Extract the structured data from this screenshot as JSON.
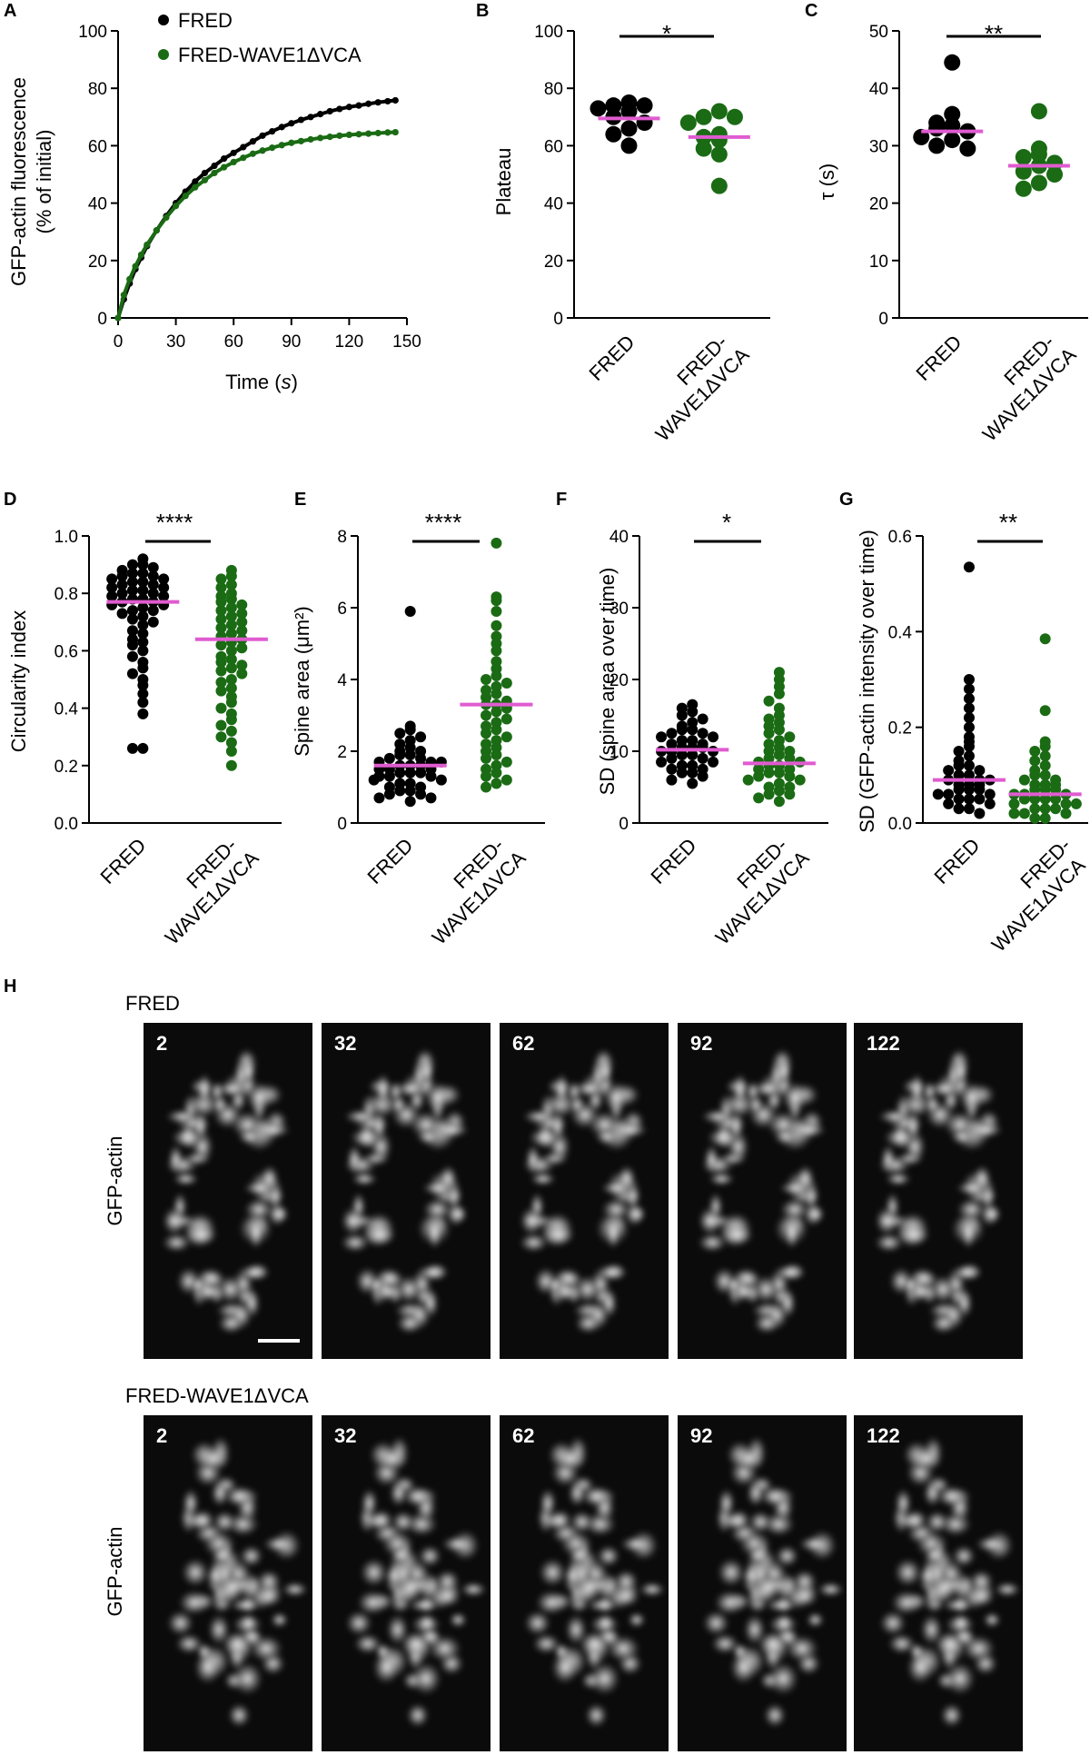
{
  "colors": {
    "fred": "#000000",
    "wave": "#1a6b14",
    "median": "#e05bd0",
    "bg": "#ffffff"
  },
  "panels": {
    "A": {
      "letter": "A",
      "ylabel1": "GFP-actin fluorescence",
      "ylabel2": "(% of initial)",
      "xlabel": "Time (",
      "xlabel_italic": "s",
      "xlabel_end": ")",
      "legend": [
        "FRED",
        "FRED-WAVE1ΔVCA"
      ]
    },
    "B": {
      "letter": "B",
      "ylabel": "Plateau",
      "sig": "*",
      "cats": [
        "FRED",
        "FRED-",
        "WAVE1ΔVCA"
      ]
    },
    "C": {
      "letter": "C",
      "ylabel": "τ (s)",
      "sig": "**",
      "cats": [
        "FRED",
        "FRED-",
        "WAVE1ΔVCA"
      ]
    },
    "D": {
      "letter": "D",
      "ylabel": "Circularity index",
      "sig": "****",
      "cats": [
        "FRED",
        "FRED-",
        "WAVE1ΔVCA"
      ]
    },
    "E": {
      "letter": "E",
      "ylabel": "Spine area (μm²)",
      "sig": "****",
      "cats": [
        "FRED",
        "FRED-",
        "WAVE1ΔVCA"
      ]
    },
    "F": {
      "letter": "F",
      "ylabel": "SD (spine area over time)",
      "sig": "*",
      "cats": [
        "FRED",
        "FRED-",
        "WAVE1ΔVCA"
      ]
    },
    "G": {
      "letter": "G",
      "ylabel": "SD (GFP-actin intensity over time)",
      "sig": "**",
      "cats": [
        "FRED",
        "FRED-",
        "WAVE1ΔVCA"
      ]
    },
    "H": {
      "letter": "H",
      "rows": [
        {
          "title": "FRED",
          "ylabel": "GFP-actin",
          "frames": [
            "2",
            "32",
            "62",
            "92",
            "122"
          ]
        },
        {
          "title": "FRED-WAVE1ΔVCA",
          "ylabel": "GFP-actin",
          "frames": [
            "2",
            "32",
            "62",
            "92",
            "122"
          ]
        }
      ]
    }
  },
  "chart_data": [
    {
      "panel": "A",
      "type": "line",
      "xlabel": "Time (s)",
      "ylabel": "GFP-actin fluorescence (% of initial)",
      "xlim": [
        0,
        150
      ],
      "ylim": [
        0,
        100
      ],
      "xticks": [
        0,
        30,
        60,
        90,
        120,
        150
      ],
      "yticks": [
        0,
        20,
        40,
        60,
        80,
        100
      ],
      "x": [
        0,
        3,
        6,
        9,
        12,
        15,
        20,
        25,
        30,
        35,
        40,
        45,
        50,
        55,
        60,
        65,
        70,
        75,
        80,
        85,
        90,
        95,
        100,
        105,
        110,
        115,
        120,
        125,
        130,
        135,
        140,
        144
      ],
      "series": [
        {
          "name": "FRED",
          "values": [
            0,
            6.5,
            12,
            17,
            21,
            25,
            30.5,
            35.5,
            40,
            44,
            47.5,
            50.5,
            53,
            55.5,
            57.5,
            59.5,
            61.5,
            63.5,
            65,
            66.5,
            67.8,
            69,
            70,
            71,
            72,
            72.8,
            73.5,
            74,
            74.6,
            75.1,
            75.5,
            75.8
          ]
        },
        {
          "name": "FRED-WAVE1ΔVCA",
          "values": [
            0,
            8,
            13.5,
            18,
            22,
            25.5,
            30.5,
            35,
            39,
            42.5,
            45.5,
            48,
            50.5,
            52.5,
            54.3,
            55.8,
            57.2,
            58.3,
            59.3,
            60.2,
            61,
            61.6,
            62.2,
            62.7,
            63.1,
            63.5,
            63.8,
            64,
            64.2,
            64.4,
            64.6,
            64.7
          ]
        }
      ]
    },
    {
      "panel": "B",
      "type": "scatter",
      "ylabel": "Plateau",
      "ylim": [
        0,
        100
      ],
      "yticks": [
        0,
        20,
        40,
        60,
        80,
        100
      ],
      "categories": [
        "FRED",
        "FRED-WAVE1ΔVCA"
      ],
      "series": [
        {
          "name": "FRED",
          "values": [
            75,
            74,
            74,
            73,
            72,
            70,
            68,
            66,
            64,
            60
          ],
          "median": 69.5
        },
        {
          "name": "FRED-WAVE1ΔVCA",
          "values": [
            72,
            70,
            70,
            68,
            64,
            63,
            62,
            59,
            57,
            46
          ],
          "median": 63
        }
      ],
      "significance": "*"
    },
    {
      "panel": "C",
      "type": "scatter",
      "ylabel": "τ (s)",
      "ylim": [
        0,
        50
      ],
      "yticks": [
        0,
        10,
        20,
        30,
        40,
        50
      ],
      "categories": [
        "FRED",
        "FRED-WAVE1ΔVCA"
      ],
      "series": [
        {
          "name": "FRED",
          "values": [
            44.5,
            35.5,
            34,
            33.5,
            33,
            32.5,
            31.5,
            31,
            30,
            29.5
          ],
          "median": 32.5
        },
        {
          "name": "FRED-WAVE1ΔVCA",
          "values": [
            36,
            29.5,
            28.5,
            28,
            27,
            26.5,
            25.5,
            25,
            23.5,
            22.5
          ],
          "median": 26.5
        }
      ],
      "significance": "**"
    },
    {
      "panel": "D",
      "type": "scatter",
      "ylabel": "Circularity index",
      "ylim": [
        0,
        1
      ],
      "yticks": [
        0,
        0.2,
        0.4,
        0.6,
        0.8,
        1.0
      ],
      "categories": [
        "FRED",
        "FRED-WAVE1ΔVCA"
      ],
      "series": [
        {
          "name": "FRED",
          "values": [
            0.92,
            0.9,
            0.9,
            0.89,
            0.88,
            0.87,
            0.87,
            0.86,
            0.86,
            0.85,
            0.85,
            0.84,
            0.84,
            0.83,
            0.83,
            0.82,
            0.82,
            0.81,
            0.81,
            0.8,
            0.8,
            0.79,
            0.79,
            0.78,
            0.78,
            0.77,
            0.77,
            0.76,
            0.76,
            0.75,
            0.74,
            0.74,
            0.73,
            0.72,
            0.71,
            0.7,
            0.69,
            0.67,
            0.66,
            0.64,
            0.63,
            0.62,
            0.6,
            0.58,
            0.56,
            0.54,
            0.52,
            0.5,
            0.48,
            0.45,
            0.42,
            0.38,
            0.26,
            0.26
          ],
          "median": 0.77
        },
        {
          "name": "FRED-WAVE1ΔVCA",
          "values": [
            0.88,
            0.86,
            0.85,
            0.83,
            0.82,
            0.8,
            0.79,
            0.78,
            0.77,
            0.76,
            0.75,
            0.74,
            0.73,
            0.72,
            0.71,
            0.7,
            0.69,
            0.68,
            0.67,
            0.66,
            0.65,
            0.64,
            0.63,
            0.62,
            0.61,
            0.6,
            0.58,
            0.57,
            0.56,
            0.55,
            0.54,
            0.53,
            0.52,
            0.5,
            0.49,
            0.47,
            0.46,
            0.44,
            0.42,
            0.4,
            0.38,
            0.36,
            0.34,
            0.32,
            0.3,
            0.28,
            0.25,
            0.2
          ],
          "median": 0.64
        }
      ],
      "significance": "****"
    },
    {
      "panel": "E",
      "type": "scatter",
      "ylabel": "Spine area (μm²)",
      "ylim": [
        0,
        8
      ],
      "yticks": [
        0,
        2,
        4,
        6,
        8
      ],
      "categories": [
        "FRED",
        "FRED-WAVE1ΔVCA"
      ],
      "series": [
        {
          "name": "FRED",
          "values": [
            5.9,
            2.7,
            2.6,
            2.5,
            2.4,
            2.3,
            2.2,
            2.1,
            2.0,
            2.0,
            1.9,
            1.9,
            1.8,
            1.8,
            1.7,
            1.7,
            1.7,
            1.6,
            1.6,
            1.6,
            1.5,
            1.5,
            1.5,
            1.4,
            1.4,
            1.4,
            1.3,
            1.3,
            1.3,
            1.2,
            1.2,
            1.1,
            1.1,
            1.0,
            1.0,
            0.9,
            0.9,
            0.8,
            0.8,
            0.7,
            0.7,
            0.6
          ],
          "median": 1.6
        },
        {
          "name": "FRED-WAVE1ΔVCA",
          "values": [
            7.8,
            6.3,
            6.2,
            5.9,
            5.5,
            5.2,
            5.0,
            4.8,
            4.5,
            4.3,
            4.1,
            4.0,
            3.9,
            3.8,
            3.7,
            3.6,
            3.5,
            3.4,
            3.3,
            3.3,
            3.2,
            3.1,
            3.0,
            2.9,
            2.8,
            2.7,
            2.6,
            2.5,
            2.4,
            2.3,
            2.2,
            2.1,
            2.0,
            1.9,
            1.8,
            1.7,
            1.6,
            1.5,
            1.4,
            1.3,
            1.2,
            1.1,
            1.0
          ],
          "median": 3.3
        }
      ],
      "significance": "****"
    },
    {
      "panel": "F",
      "type": "scatter",
      "ylabel": "SD (spine area over time)",
      "ylim": [
        0,
        40
      ],
      "yticks": [
        0,
        10,
        20,
        30,
        40
      ],
      "categories": [
        "FRED",
        "FRED-WAVE1ΔVCA"
      ],
      "series": [
        {
          "name": "FRED",
          "values": [
            16.5,
            16,
            15.5,
            15,
            14.5,
            14,
            13.5,
            13,
            13,
            12.5,
            12.5,
            12,
            12,
            11.5,
            11.5,
            11,
            11,
            10.5,
            10.5,
            10.5,
            10,
            10,
            10,
            9.5,
            9.5,
            9,
            9,
            8.5,
            8.5,
            8,
            8,
            7.5,
            7.5,
            7,
            7,
            6.5,
            6,
            5.5
          ],
          "median": 10.2
        },
        {
          "name": "FRED-WAVE1ΔVCA",
          "values": [
            21,
            20,
            19,
            18,
            17,
            16,
            15,
            14.5,
            14,
            13.5,
            13,
            12.5,
            12,
            11.5,
            11,
            10.5,
            10,
            10,
            9.5,
            9,
            9,
            8.5,
            8.5,
            8,
            8,
            7.5,
            7.5,
            7,
            7,
            6.5,
            6.5,
            6,
            6,
            5.5,
            5,
            5,
            4.5,
            4,
            4,
            3.5,
            3
          ],
          "median": 8.3
        }
      ],
      "significance": "*"
    },
    {
      "panel": "G",
      "type": "scatter",
      "ylabel": "SD (GFP-actin intensity over time)",
      "ylim": [
        0,
        0.6
      ],
      "yticks": [
        0,
        0.2,
        0.4,
        0.6
      ],
      "categories": [
        "FRED",
        "FRED-WAVE1ΔVCA"
      ],
      "series": [
        {
          "name": "FRED",
          "values": [
            0.535,
            0.3,
            0.28,
            0.26,
            0.24,
            0.22,
            0.2,
            0.18,
            0.17,
            0.16,
            0.15,
            0.14,
            0.13,
            0.12,
            0.12,
            0.11,
            0.11,
            0.1,
            0.1,
            0.09,
            0.09,
            0.09,
            0.08,
            0.08,
            0.08,
            0.07,
            0.07,
            0.07,
            0.06,
            0.06,
            0.06,
            0.05,
            0.05,
            0.05,
            0.04,
            0.04,
            0.03,
            0.03,
            0.02
          ],
          "median": 0.09
        },
        {
          "name": "FRED-WAVE1ΔVCA",
          "values": [
            0.385,
            0.235,
            0.17,
            0.16,
            0.15,
            0.14,
            0.13,
            0.12,
            0.11,
            0.1,
            0.1,
            0.09,
            0.09,
            0.08,
            0.08,
            0.08,
            0.07,
            0.07,
            0.07,
            0.06,
            0.06,
            0.06,
            0.05,
            0.05,
            0.05,
            0.05,
            0.04,
            0.04,
            0.04,
            0.03,
            0.03,
            0.03,
            0.02,
            0.02,
            0.02,
            0.01,
            0.01
          ],
          "median": 0.06
        }
      ],
      "significance": "**"
    }
  ]
}
